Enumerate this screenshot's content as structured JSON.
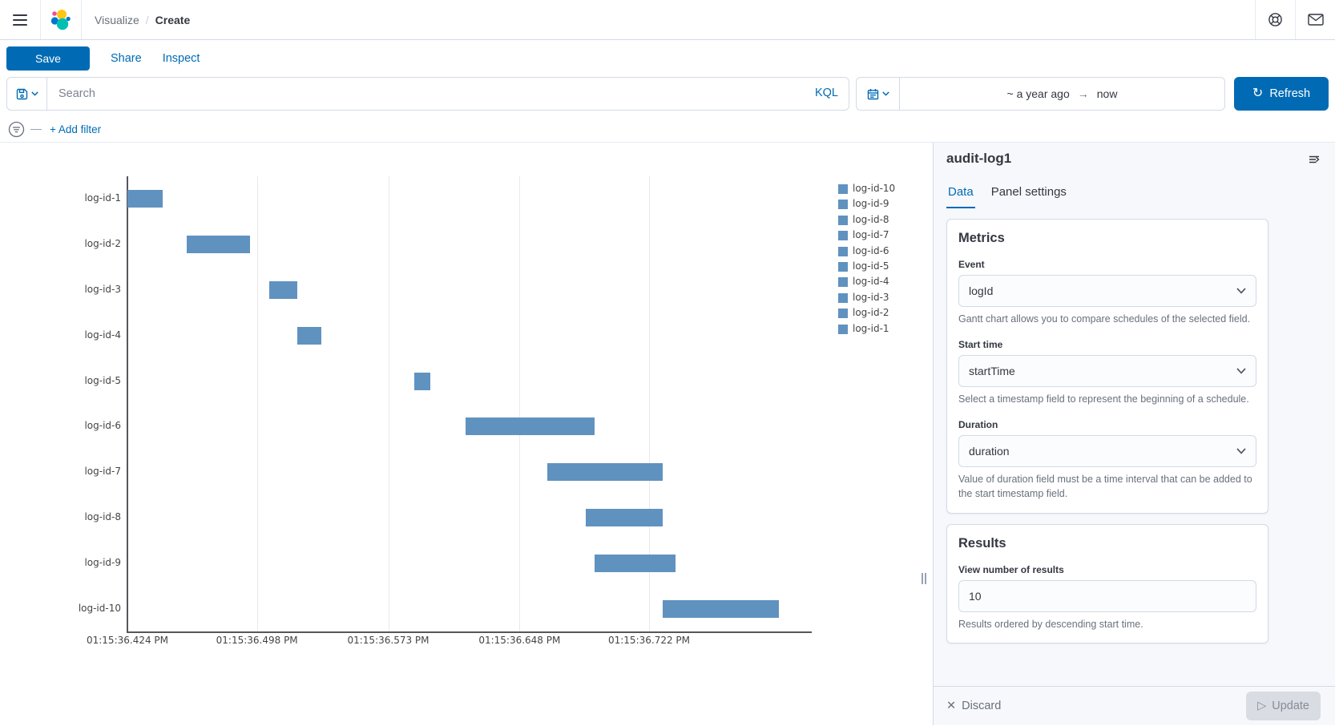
{
  "topnav": {
    "breadcrumb": {
      "parent": "Visualize",
      "separator": "/",
      "current": "Create"
    }
  },
  "actions": {
    "save_label": "Save",
    "share_label": "Share",
    "inspect_label": "Inspect"
  },
  "searchbar": {
    "placeholder": "Search",
    "kql_label": "KQL",
    "date_from": "~ a year ago",
    "date_to": "now",
    "refresh_label": "Refresh",
    "refresh_icon": "↻",
    "date_arrow": "→"
  },
  "filterbar": {
    "add_filter_label": "+ Add filter"
  },
  "panel": {
    "title": "audit-log1",
    "tabs": [
      {
        "label": "Data",
        "active": true
      },
      {
        "label": "Panel settings",
        "active": false
      }
    ],
    "metrics": {
      "heading": "Metrics",
      "event_label": "Event",
      "event_value": "logId",
      "event_help": "Gantt chart allows you to compare schedules of the selected field.",
      "start_label": "Start time",
      "start_value": "startTime",
      "start_help": "Select a timestamp field to represent the beginning of a schedule.",
      "duration_label": "Duration",
      "duration_value": "duration",
      "duration_help": "Value of duration field must be a time interval that can be added to the start timestamp field."
    },
    "results": {
      "heading": "Results",
      "count_label": "View number of results",
      "count_value": "10",
      "count_help": "Results ordered by descending start time."
    },
    "footer": {
      "discard_label": "Discard",
      "discard_icon": "✕",
      "update_label": "Update",
      "update_icon": "▷"
    }
  },
  "chart_data": {
    "type": "bar",
    "subtype": "gantt",
    "orientation": "horizontal",
    "categories": [
      "log-id-1",
      "log-id-2",
      "log-id-3",
      "log-id-4",
      "log-id-5",
      "log-id-6",
      "log-id-7",
      "log-id-8",
      "log-id-9",
      "log-id-10"
    ],
    "bars": [
      {
        "label": "log-id-1",
        "start_ms": 0,
        "end_ms": 20
      },
      {
        "label": "log-id-2",
        "start_ms": 34,
        "end_ms": 70
      },
      {
        "label": "log-id-3",
        "start_ms": 81,
        "end_ms": 97
      },
      {
        "label": "log-id-4",
        "start_ms": 97,
        "end_ms": 111
      },
      {
        "label": "log-id-5",
        "start_ms": 164,
        "end_ms": 173
      },
      {
        "label": "log-id-6",
        "start_ms": 193,
        "end_ms": 267
      },
      {
        "label": "log-id-7",
        "start_ms": 240,
        "end_ms": 306
      },
      {
        "label": "log-id-8",
        "start_ms": 262,
        "end_ms": 306
      },
      {
        "label": "log-id-9",
        "start_ms": 267,
        "end_ms": 313
      },
      {
        "label": "log-id-10",
        "start_ms": 306,
        "end_ms": 372
      }
    ],
    "x_ticks": [
      {
        "label": "01:15:36.424 PM",
        "ms": 0
      },
      {
        "label": "01:15:36.498 PM",
        "ms": 74
      },
      {
        "label": "01:15:36.573 PM",
        "ms": 149
      },
      {
        "label": "01:15:36.648 PM",
        "ms": 224
      },
      {
        "label": "01:15:36.722 PM",
        "ms": 298
      }
    ],
    "x_range_ms": [
      0,
      391
    ],
    "legend": [
      "log-id-10",
      "log-id-9",
      "log-id-8",
      "log-id-7",
      "log-id-6",
      "log-id-5",
      "log-id-4",
      "log-id-3",
      "log-id-2",
      "log-id-1"
    ],
    "legend_position": "right",
    "grid": true,
    "bar_color": "#6092C0"
  },
  "colors": {
    "accent": "#006BB4",
    "bar": "#6092C0",
    "panel_bg": "#F7F8FC",
    "border": "#D3DAE6",
    "text": "#343741",
    "subdued": "#69707D"
  }
}
